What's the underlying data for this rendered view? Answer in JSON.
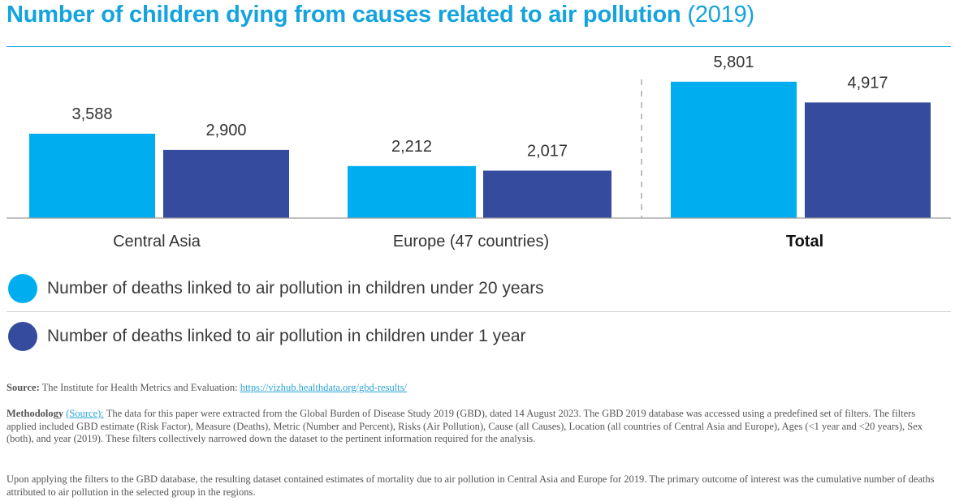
{
  "header": {
    "title_main": "Number of children dying from causes related to air pollution",
    "title_year": "(2019)"
  },
  "colors": {
    "accent": "#14a3dd",
    "under20": "#00aeef",
    "under1": "#344b9e"
  },
  "chart_data": {
    "type": "bar",
    "categories": [
      "Central Asia",
      "Europe (47 countries)",
      "Total"
    ],
    "series": [
      {
        "name": "Number of deaths linked to air pollution in children under 20 years",
        "values": [
          3588,
          2212,
          5801
        ]
      },
      {
        "name": "Number of deaths linked to air pollution in children under 1 year",
        "values": [
          2900,
          2017,
          4917
        ]
      }
    ],
    "value_labels": [
      [
        "3,588",
        "2,212",
        "5,801"
      ],
      [
        "2,900",
        "2,017",
        "4,917"
      ]
    ],
    "ylim": [
      0,
      8000
    ],
    "grid": false,
    "legend_position": "bottom"
  },
  "legend": [
    {
      "label": "Number of deaths linked to air pollution in children under 20 years"
    },
    {
      "label": "Number of deaths linked to air pollution in children under 1 year"
    }
  ],
  "source": {
    "label": "Source:",
    "text": "The Institute for Health Metrics and Evaluation:",
    "link": "https://vizhub.healthdata.org/gbd-results/"
  },
  "methodology": {
    "label": "Methodology",
    "link": "(Source):",
    "text": "The data for this paper were extracted from the Global Burden of Disease Study 2019 (GBD), dated 14 August 2023. The GBD 2019 database was accessed using a predefined set of filters. The filters applied included GBD estimate (Risk Factor), Measure (Deaths), Metric (Number and Percent), Risks (Air Pollution), Cause (all Causes), Location (all countries of Central Asia and Europe), Ages (<1 year and <20 years), Sex (both), and year (2019). These filters collectively narrowed down the dataset to the pertinent information required for the analysis."
  },
  "outcome_note": "Upon applying the filters to the GBD database, the resulting dataset contained estimates of mortality due to air pollution in Central Asia and Europe for 2019. The primary outcome of interest was the cumulative number of deaths attributed to air pollution in the selected group in the regions."
}
